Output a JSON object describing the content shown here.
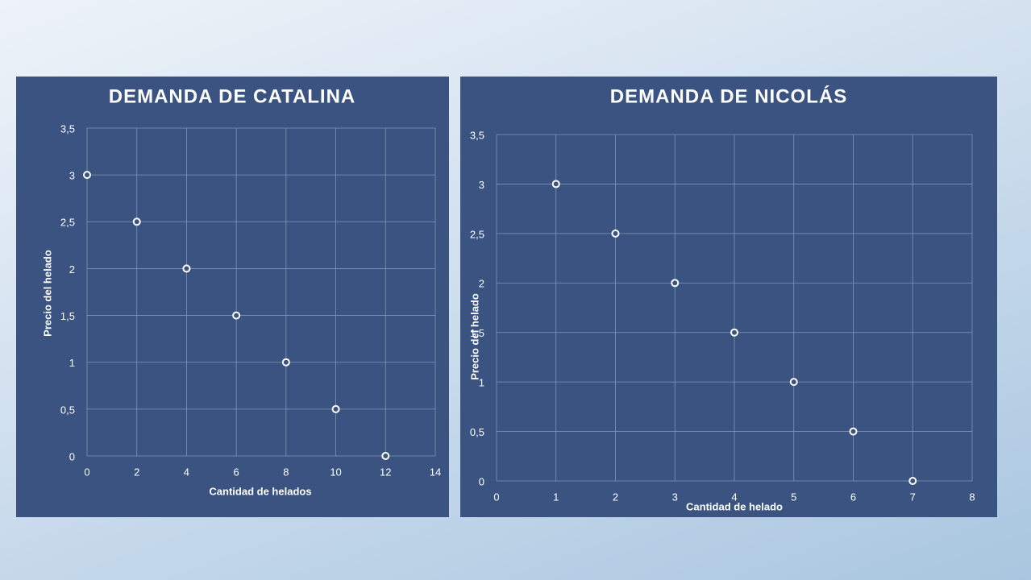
{
  "chart_data": [
    {
      "type": "scatter",
      "title": "DEMANDA DE CATALINA",
      "x_label": "Cantidad de helados",
      "y_label": "Precio del helado",
      "x": [
        0,
        2,
        4,
        6,
        8,
        10,
        12
      ],
      "values": [
        3,
        2.5,
        2,
        1.5,
        1,
        0.5,
        0
      ],
      "color": "#ffffff",
      "xlim": [
        0,
        14
      ],
      "xticks": [
        0,
        2,
        4,
        6,
        8,
        10,
        12,
        14
      ],
      "ylim": [
        0,
        3.5
      ],
      "yticks": [
        0,
        {
          "value": 0.5,
          "label": "0,5"
        },
        1,
        {
          "value": 1.5,
          "label": "1,5"
        },
        2,
        {
          "value": 2.5,
          "label": "2,5"
        },
        3,
        {
          "value": 3.5,
          "label": "3,5"
        }
      ],
      "grid": true
    },
    {
      "type": "scatter",
      "title": "DEMANDA DE NICOLÁS",
      "x_label": "Cantidad de helado",
      "y_label": "Precio del helado",
      "x": [
        1,
        2,
        3,
        4,
        5,
        6,
        7
      ],
      "values": [
        3,
        2.5,
        2,
        1.5,
        1,
        0.5,
        0
      ],
      "color": "#ffffff",
      "xlim": [
        0,
        8
      ],
      "xticks": [
        0,
        1,
        2,
        3,
        4,
        5,
        6,
        7,
        8
      ],
      "ylim": [
        0,
        3.5
      ],
      "yticks": [
        0,
        {
          "value": 0.5,
          "label": "0,5"
        },
        1,
        {
          "value": 1.5,
          "label": "1,5"
        },
        2,
        {
          "value": 2.5,
          "label": "2,5"
        },
        3,
        {
          "value": 3.5,
          "label": "3,5"
        }
      ],
      "grid": true
    }
  ]
}
